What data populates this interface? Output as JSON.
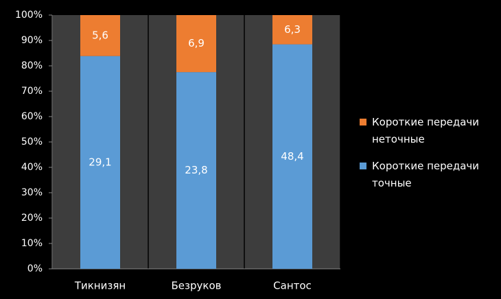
{
  "chart_data": {
    "type": "bar",
    "stacking": "percent",
    "categories": [
      "Тикнизян",
      "Безруков",
      "Сантос"
    ],
    "series": [
      {
        "name": "Короткие передачи точные",
        "color": "#5b9bd5",
        "values": [
          29.1,
          23.8,
          48.4
        ],
        "value_labels": [
          "29,1",
          "23,8",
          "48,4"
        ]
      },
      {
        "name": "Короткие передачи неточные",
        "color": "#ed7d31",
        "values": [
          5.6,
          6.9,
          6.3
        ],
        "value_labels": [
          "5,6",
          "6,9",
          "6,3"
        ]
      }
    ],
    "ylim": [
      0,
      100
    ],
    "yticks": [
      {
        "value": 0,
        "label": "0%"
      },
      {
        "value": 10,
        "label": "10%"
      },
      {
        "value": 20,
        "label": "20%"
      },
      {
        "value": 30,
        "label": "30%"
      },
      {
        "value": 40,
        "label": "40%"
      },
      {
        "value": 50,
        "label": "50%"
      },
      {
        "value": 60,
        "label": "60%"
      },
      {
        "value": 70,
        "label": "70%"
      },
      {
        "value": 80,
        "label": "80%"
      },
      {
        "value": 90,
        "label": "90%"
      },
      {
        "value": 100,
        "label": "100%"
      }
    ],
    "legend": "right"
  }
}
